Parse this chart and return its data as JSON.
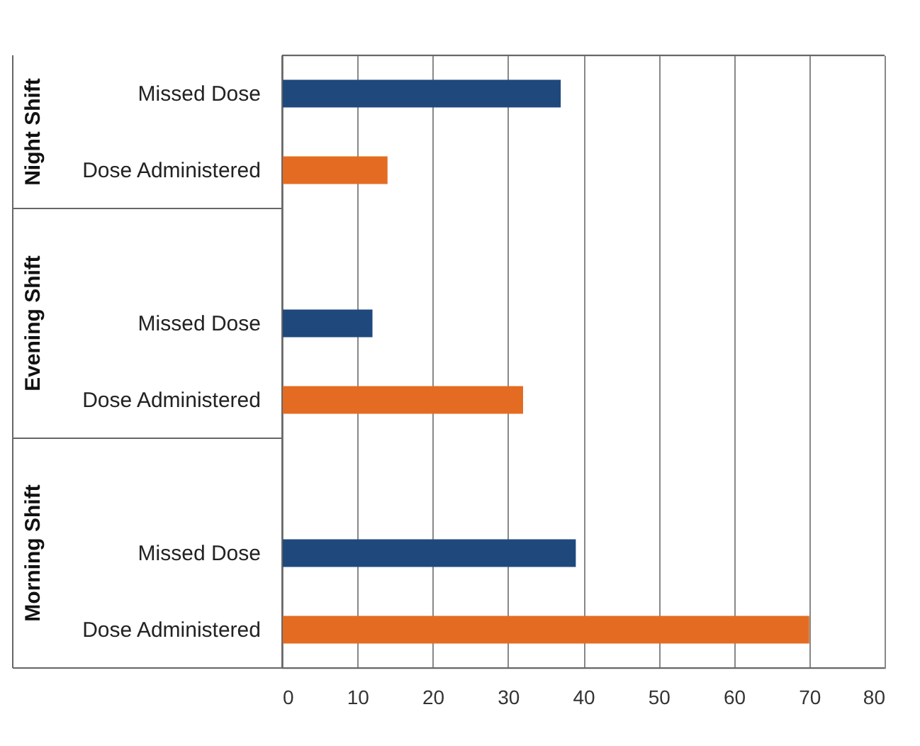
{
  "chart_data": {
    "type": "bar",
    "orientation": "horizontal",
    "categories": [
      "Missed Dose",
      "Dose Administered",
      "Missed Dose",
      "Dose Administered",
      "Missed Dose",
      "Dose Administered"
    ],
    "values": [
      37,
      14,
      12,
      32,
      39,
      70
    ],
    "colors": [
      "#1f497d",
      "#e46c22",
      "#1f497d",
      "#e46c22",
      "#1f497d",
      "#e46c22"
    ],
    "annotations": [
      "Night Shift",
      "Evening Shift",
      "Morning Shift"
    ],
    "xlim": [
      0,
      80
    ],
    "xticks": [
      0,
      10,
      20,
      30,
      40,
      50,
      60,
      70,
      80
    ],
    "grid": "x"
  }
}
